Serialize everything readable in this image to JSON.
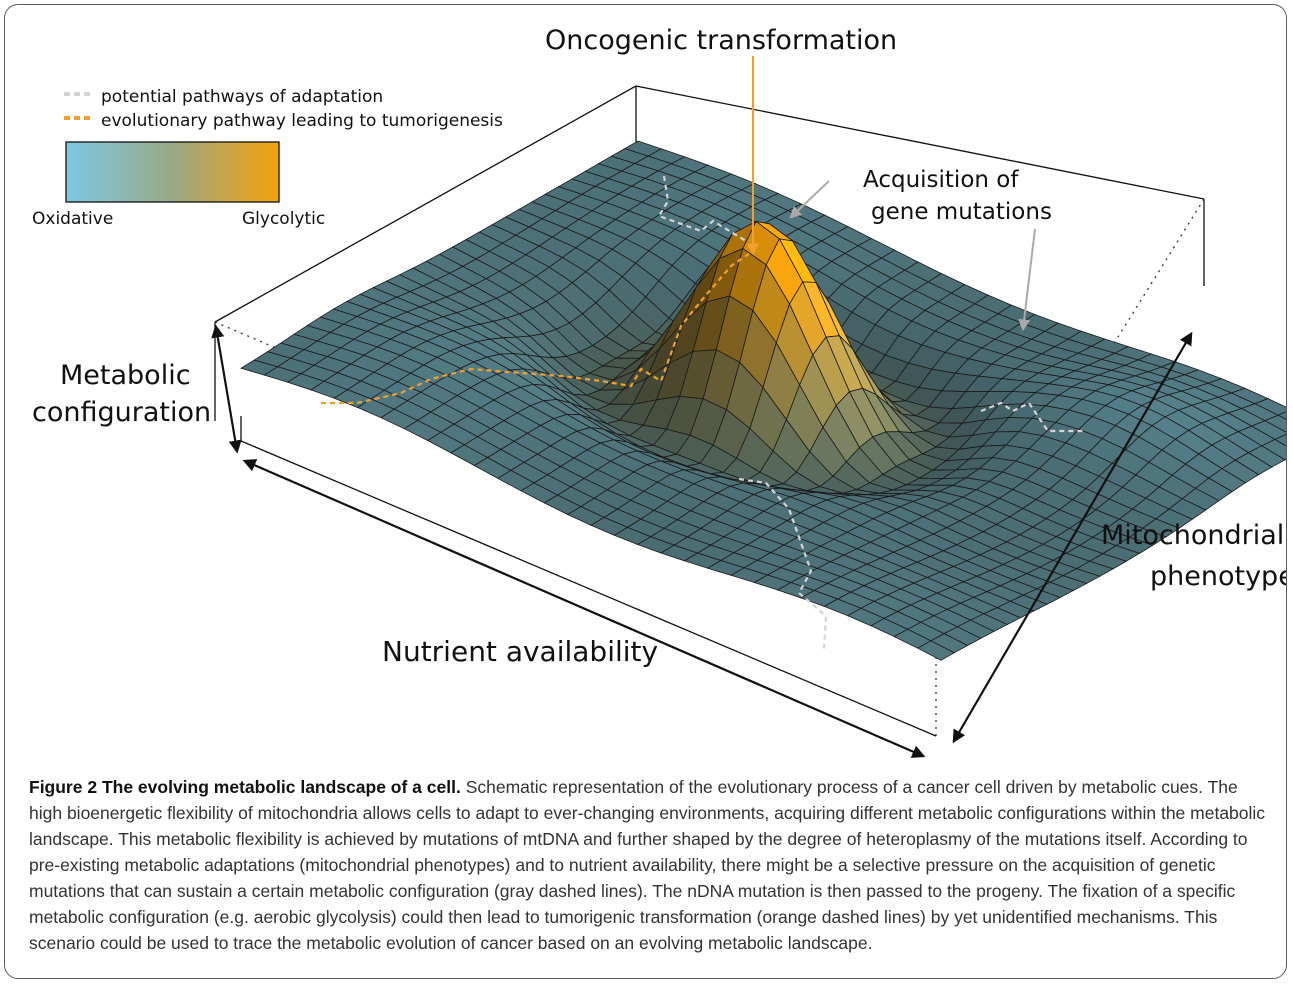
{
  "figure": {
    "title": "Oncogenic transformation",
    "annotation_gene_line1": "Acquisition of",
    "annotation_gene_line2": "gene mutations",
    "axis_metabolic_line1": "Metabolic",
    "axis_metabolic_line2": "configuration",
    "axis_nutrient": "Nutrient availability",
    "axis_mito_line1": "Mitochondrial",
    "axis_mito_line2": "phenotype",
    "legend": {
      "gray_path": "potential pathways of adaptation",
      "orange_path": "evolutionary pathway leading to tumorigenesis",
      "scale_low": "Oxidative",
      "scale_high": "Glycolytic"
    },
    "colors": {
      "oxidative": "#7ec8e3",
      "glycolytic": "#f5a10a",
      "surface_base": "#4f6f72",
      "gray_path": "#d4d4d4",
      "orange_path": "#f0a030"
    }
  },
  "caption": {
    "label": "Figure 2",
    "title": "The evolving metabolic landscape of a cell.",
    "body": "Schematic representation of the evolutionary process of a cancer cell driven by metabolic cues. The high bioenergetic flexibility of mitochondria allows cells to adapt to ever-changing environments, acquiring different metabolic configurations within the metabolic landscape. This metabolic flexibility is achieved by mutations of mtDNA and further shaped by the degree of heteroplasmy of the mutations itself. According to pre-existing metabolic adaptations (mitochondrial phenotypes) and to nutrient availability, there might be a selective pressure on the acquisition of genetic mutations that can sustain a certain metabolic configuration (gray dashed lines). The nDNA mutation is then passed to the progeny. The fixation of a specific metabolic configuration (e.g. aerobic glycolysis) could then lead to tumorigenic transformation (orange dashed lines) by yet unidentified mechanisms. This scenario could be used to trace the metabolic evolution of cancer based on an evolving metabolic landscape."
  }
}
